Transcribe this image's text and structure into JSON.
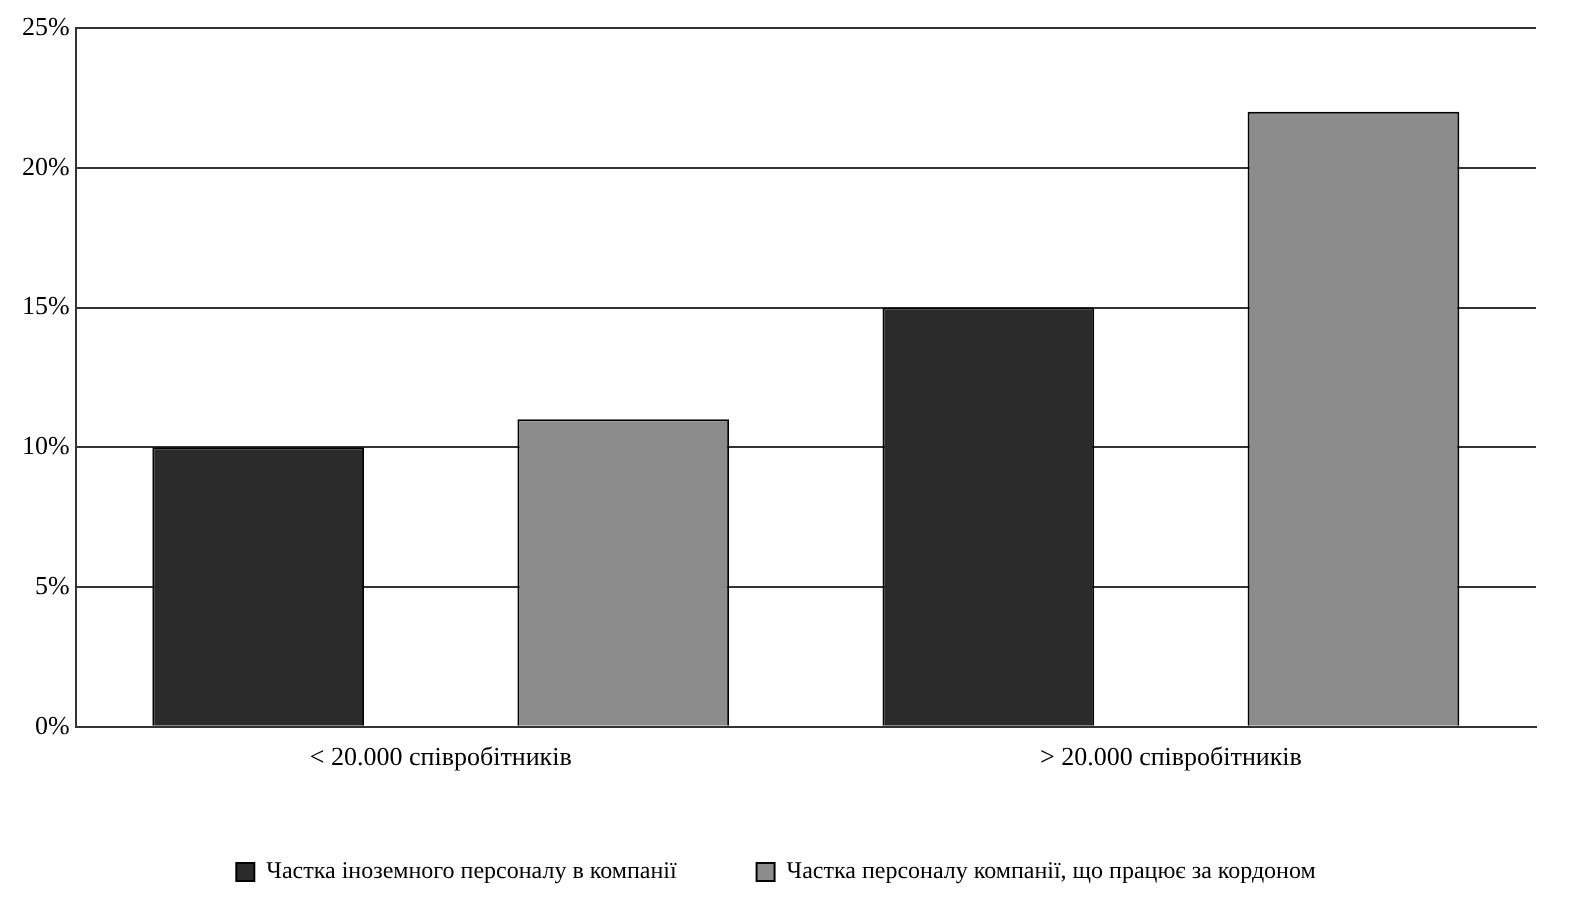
{
  "chart_data": {
    "type": "bar",
    "categories": [
      "< 20.000 співробітників",
      "> 20.000 співробітників"
    ],
    "series": [
      {
        "name": "Частка іноземного персоналу в компанії",
        "color": "#2b2b2b",
        "values": [
          10,
          15
        ]
      },
      {
        "name": "Частка персоналу компанії, що працює за кордоном",
        "color": "#8c8c8c",
        "values": [
          11,
          22
        ]
      }
    ],
    "ylim": [
      0,
      25
    ],
    "yticks": [
      {
        "value": 0,
        "label": "0%"
      },
      {
        "value": 5,
        "label": "5%"
      },
      {
        "value": 10,
        "label": "10%"
      },
      {
        "value": 15,
        "label": "15%"
      },
      {
        "value": 20,
        "label": "20%"
      },
      {
        "value": 25,
        "label": "25%"
      }
    ],
    "grid": "y",
    "legend": "bottom"
  }
}
